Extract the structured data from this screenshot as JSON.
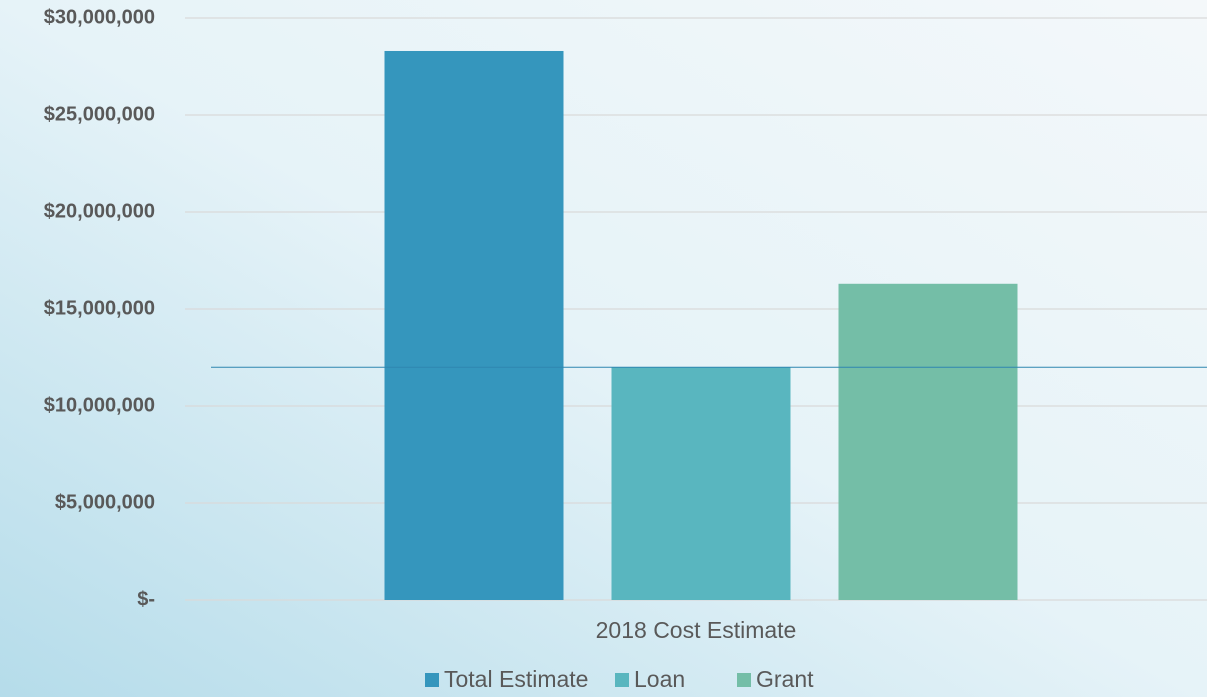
{
  "chart_data": {
    "type": "bar",
    "categories": [
      "2018 Cost Estimate"
    ],
    "series": [
      {
        "name": "Total Estimate",
        "color": "#3596bd",
        "values": [
          28300000
        ]
      },
      {
        "name": "Loan",
        "color": "#59b6bf",
        "values": [
          12000000
        ]
      },
      {
        "name": "Grant",
        "color": "#74bea7",
        "values": [
          16300000
        ]
      }
    ],
    "ylim": [
      0,
      30000000
    ],
    "yticks": [
      {
        "value": 0,
        "label": "$-"
      },
      {
        "value": 5000000,
        "label": "$5,000,000"
      },
      {
        "value": 10000000,
        "label": "$10,000,000"
      },
      {
        "value": 15000000,
        "label": "$15,000,000"
      },
      {
        "value": 20000000,
        "label": "$20,000,000"
      },
      {
        "value": 25000000,
        "label": "$25,000,000"
      },
      {
        "value": 30000000,
        "label": "$30,000,000"
      }
    ],
    "grid": true,
    "reference_line": {
      "value": 12000000,
      "color": "#2e86b0"
    },
    "legend": "bottom"
  }
}
